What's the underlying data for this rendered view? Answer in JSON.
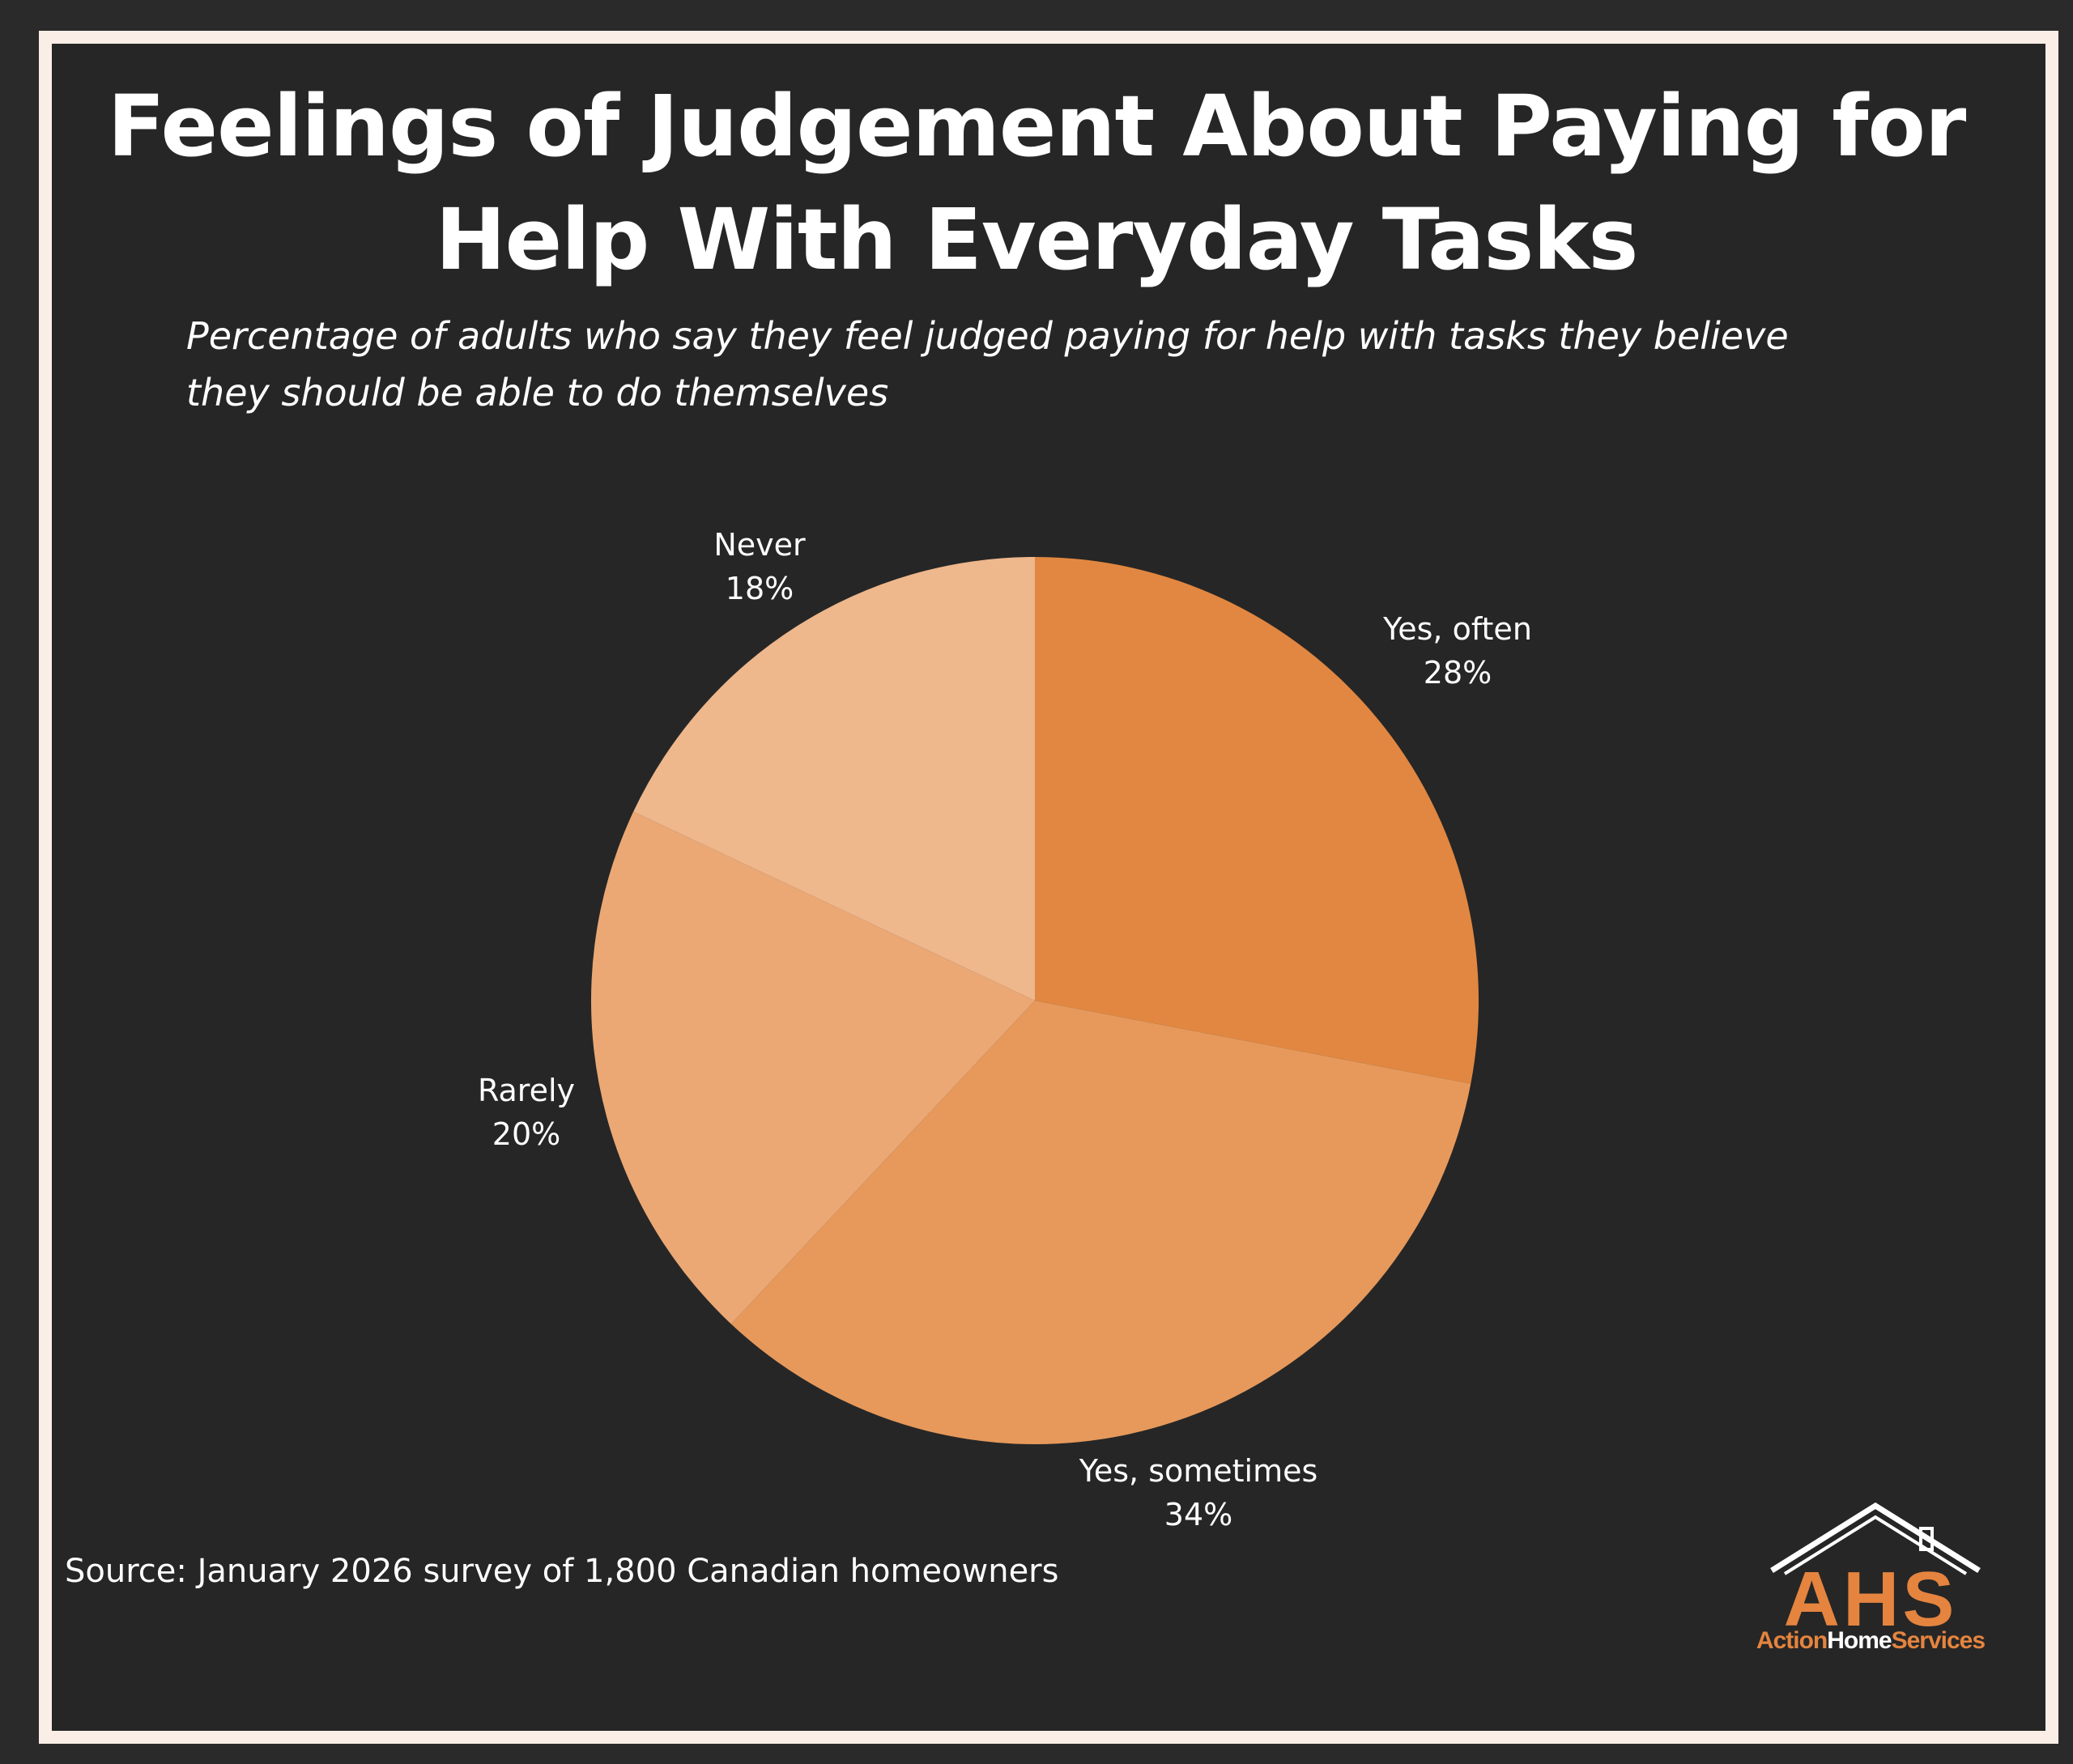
{
  "chart_data": {
    "type": "pie",
    "title": "Feelings of Judgement About Paying for Help With Everyday Tasks",
    "subtitle": "Percentage of adults who say they feel judged paying for help with tasks they believe they should be able to do themselves",
    "slices": [
      {
        "label": "Yes, often",
        "value": 28,
        "display": "28%",
        "color": "#e18741"
      },
      {
        "label": "Yes, sometimes",
        "value": 34,
        "display": "34%",
        "color": "#e6995b"
      },
      {
        "label": "Rarely",
        "value": 20,
        "display": "20%",
        "color": "#eba874"
      },
      {
        "label": "Never",
        "value": 18,
        "display": "18%",
        "color": "#eeb78c"
      }
    ],
    "start": "12 o'clock",
    "direction": "clockwise",
    "source": "Source:  January 2026 survey of 1,800 Canadian homeowners"
  },
  "logo": {
    "letters": "AHS",
    "word_1": "Action",
    "word_2": "Home",
    "word_3": "Services",
    "accent_color": "#e4843f"
  },
  "colors": {
    "background": "#262626",
    "frame": "#fbeee6",
    "text": "#ffffff"
  }
}
